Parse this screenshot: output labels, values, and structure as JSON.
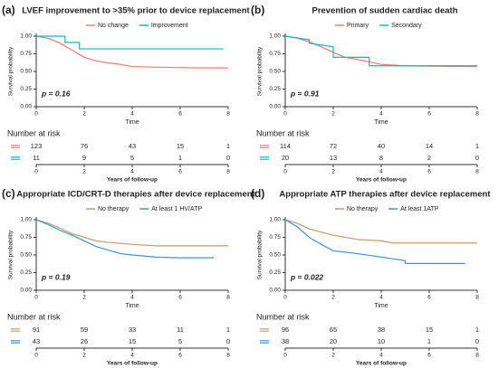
{
  "chart_data": [
    {
      "type": "line",
      "panel_label": "(a)",
      "title": "LVEF improvement to >35% prior to device replacement",
      "legend": "top",
      "xlabel": "Time",
      "ylabel": "Survival probability",
      "annotation": "p = 0.16",
      "xlim": [
        0,
        8
      ],
      "xticks": [
        0,
        2,
        4,
        6,
        8
      ],
      "ylim": [
        0,
        1
      ],
      "yticks": [
        {
          "value": 0,
          "label": "0.00"
        },
        {
          "value": 0.25,
          "label": "0.25"
        },
        {
          "value": 0.5,
          "label": "0.50"
        },
        {
          "value": 0.75,
          "label": "0.75"
        },
        {
          "value": 1,
          "label": "1.00"
        }
      ],
      "series": [
        {
          "name": "No change",
          "color": "#f8766d",
          "x": [
            0,
            0.5,
            1,
            1.5,
            2,
            2.5,
            3,
            3.5,
            4,
            5,
            7,
            8
          ],
          "values": [
            1,
            0.97,
            0.9,
            0.8,
            0.7,
            0.65,
            0.62,
            0.6,
            0.57,
            0.56,
            0.55,
            0.55
          ]
        },
        {
          "name": "Improvement",
          "color": "#00bfc4",
          "x": [
            0,
            1.2,
            1.2,
            1.8,
            1.8,
            7.8
          ],
          "values": [
            1,
            1,
            0.91,
            0.91,
            0.82,
            0.82
          ]
        }
      ],
      "risk_table": {
        "title": "Number at risk",
        "xlabel": "Years of follow-up",
        "rows": [
          [
            123,
            76,
            43,
            15,
            1
          ],
          [
            11,
            9,
            5,
            1,
            0
          ]
        ]
      }
    },
    {
      "type": "line",
      "panel_label": "(b)",
      "title": "Prevention of sudden cardiac death",
      "legend": "top",
      "xlabel": "Time",
      "ylabel": "Survival probability",
      "annotation": "p = 0.91",
      "xlim": [
        0,
        8
      ],
      "xticks": [
        0,
        2,
        4,
        6,
        8
      ],
      "ylim": [
        0,
        1
      ],
      "yticks": [
        {
          "value": 0,
          "label": "0.00"
        },
        {
          "value": 0.25,
          "label": "0.25"
        },
        {
          "value": 0.5,
          "label": "0.50"
        },
        {
          "value": 0.75,
          "label": "0.75"
        },
        {
          "value": 1,
          "label": "1.00"
        }
      ],
      "series": [
        {
          "name": "Primary",
          "color": "#f8766d",
          "x": [
            0,
            0.5,
            1,
            1.5,
            2,
            2.5,
            3,
            4,
            5,
            7,
            8
          ],
          "values": [
            1,
            0.97,
            0.92,
            0.85,
            0.77,
            0.7,
            0.67,
            0.6,
            0.58,
            0.57,
            0.57
          ]
        },
        {
          "name": "Secondary",
          "color": "#00bfc4",
          "x": [
            0,
            1,
            1,
            2,
            2,
            3.5,
            3.5,
            8
          ],
          "values": [
            1,
            0.95,
            0.9,
            0.85,
            0.7,
            0.7,
            0.58,
            0.58
          ]
        }
      ],
      "risk_table": {
        "title": "Number at risk",
        "xlabel": "Years of follow-up",
        "rows": [
          [
            114,
            72,
            40,
            14,
            1
          ],
          [
            20,
            13,
            8,
            2,
            0
          ]
        ]
      }
    },
    {
      "type": "line",
      "panel_label": "(c)",
      "title": "Appropriate ICD/CRT-D therapies after device replacement",
      "legend": "top",
      "xlabel": "Time",
      "ylabel": "Survival probability",
      "annotation": "p = 0.19",
      "xlim": [
        0,
        8
      ],
      "xticks": [
        0,
        2,
        4,
        6,
        8
      ],
      "ylim": [
        0,
        1
      ],
      "yticks": [
        {
          "value": 0,
          "label": "0.00"
        },
        {
          "value": 0.25,
          "label": "0.25"
        },
        {
          "value": 0.5,
          "label": "0.50"
        },
        {
          "value": 0.75,
          "label": "0.75"
        },
        {
          "value": 1,
          "label": "1.00"
        }
      ],
      "series": [
        {
          "name": "No therapy",
          "color": "#c99a6a",
          "x": [
            0,
            0.5,
            1,
            1.5,
            2,
            2.5,
            3,
            4,
            5,
            8
          ],
          "values": [
            1,
            0.95,
            0.88,
            0.8,
            0.75,
            0.7,
            0.68,
            0.65,
            0.63,
            0.63
          ]
        },
        {
          "name": "At least 1 HV/ATP",
          "color": "#3a95d6",
          "x": [
            0,
            0.5,
            1,
            1.5,
            2,
            2.5,
            3,
            3.5,
            4,
            5,
            6,
            7.4
          ],
          "values": [
            1,
            0.93,
            0.85,
            0.78,
            0.7,
            0.62,
            0.57,
            0.52,
            0.5,
            0.47,
            0.46,
            0.46
          ]
        }
      ],
      "risk_table": {
        "title": "Number at risk",
        "xlabel": "Years of follow-up",
        "rows": [
          [
            91,
            59,
            33,
            11,
            1
          ],
          [
            43,
            26,
            15,
            5,
            0
          ]
        ]
      }
    },
    {
      "type": "line",
      "panel_label": "(d)",
      "title": "Appropriate ATP therapies after device replacement",
      "legend": "top",
      "xlabel": "Time",
      "ylabel": "Survival probability",
      "annotation": "p = 0.022",
      "xlim": [
        0,
        8
      ],
      "xticks": [
        0,
        2,
        4,
        6,
        8
      ],
      "ylim": [
        0,
        1
      ],
      "yticks": [
        {
          "value": 0,
          "label": "0.00"
        },
        {
          "value": 0.25,
          "label": "0.25"
        },
        {
          "value": 0.5,
          "label": "0.50"
        },
        {
          "value": 0.75,
          "label": "0.75"
        },
        {
          "value": 1,
          "label": "1.00"
        }
      ],
      "series": [
        {
          "name": "No therapy",
          "color": "#c99a6a",
          "x": [
            0,
            0.5,
            1,
            2,
            3,
            4,
            4.5,
            8
          ],
          "values": [
            1,
            0.95,
            0.87,
            0.78,
            0.72,
            0.7,
            0.67,
            0.67
          ]
        },
        {
          "name": "At least 1ATP",
          "color": "#3a95d6",
          "x": [
            0,
            0.5,
            1,
            1.5,
            2,
            3,
            4,
            5,
            5,
            7.5
          ],
          "values": [
            1,
            0.9,
            0.75,
            0.65,
            0.56,
            0.52,
            0.47,
            0.42,
            0.38,
            0.38
          ]
        }
      ],
      "risk_table": {
        "title": "Number at risk",
        "xlabel": "Years of follow-up",
        "rows": [
          [
            96,
            65,
            38,
            15,
            1
          ],
          [
            38,
            20,
            10,
            1,
            0
          ]
        ]
      }
    }
  ]
}
